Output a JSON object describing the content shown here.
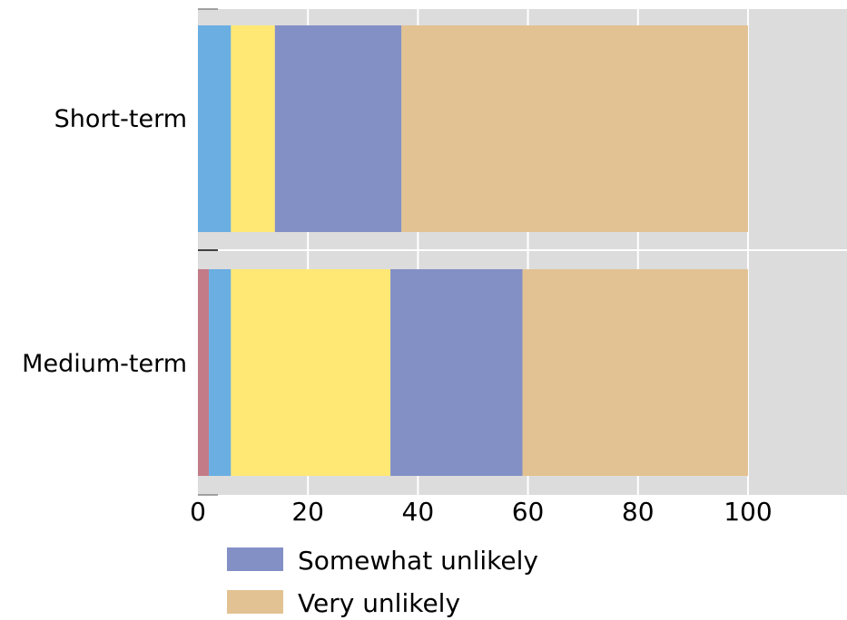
{
  "chart_data": {
    "type": "bar",
    "orientation": "horizontal",
    "stacked": true,
    "categories": [
      "Short-term",
      "Medium-term"
    ],
    "series": [
      {
        "values": [
          0,
          2
        ],
        "color": "#c27b87"
      },
      {
        "values": [
          6,
          4
        ],
        "color": "#6aaee2"
      },
      {
        "values": [
          8,
          29
        ],
        "color": "#ffe874"
      },
      {
        "name": "Somewhat unlikely",
        "values": [
          23,
          24
        ],
        "color": "#8390c6"
      },
      {
        "name": "Very unlikely",
        "values": [
          63,
          41
        ],
        "color": "#e2c292"
      }
    ],
    "xticks": [
      0,
      20,
      40,
      60,
      80,
      100
    ],
    "xlim": [
      0,
      118
    ],
    "title": "",
    "xlabel": "",
    "ylabel": "",
    "grid": true,
    "background": "#dcdcdc",
    "legend": {
      "position": "bottom",
      "entries": [
        "Somewhat unlikely",
        "Very unlikely"
      ]
    }
  }
}
